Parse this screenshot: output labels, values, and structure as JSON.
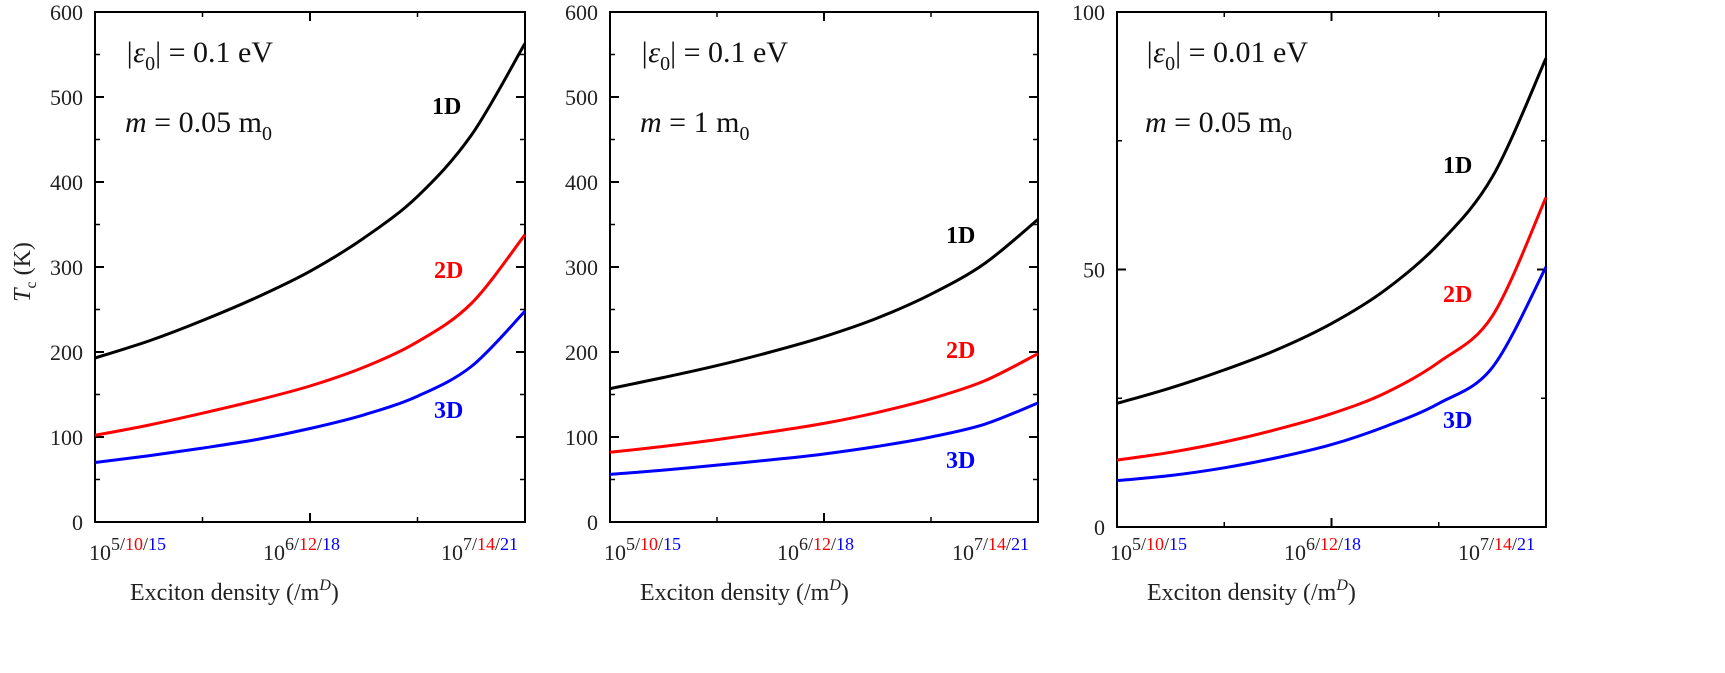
{
  "colors": {
    "1D": "#000000",
    "2D": "#ff0000",
    "3D": "#0000ff",
    "axis": "#000000"
  },
  "shared": {
    "y_axis_title": {
      "main": "T",
      "sub": "c",
      "rest": " (K)"
    },
    "x_axis_title": {
      "main": "Exciton density (/m",
      "sup": "D",
      "close": ")"
    },
    "x_tick_labels": [
      {
        "base": "10",
        "parts": [
          "5",
          "10",
          "15"
        ]
      },
      {
        "base": "10",
        "parts": [
          "6",
          "12",
          "18"
        ]
      },
      {
        "base": "10",
        "parts": [
          "7",
          "14",
          "21"
        ]
      }
    ],
    "separator": "/"
  },
  "chart_data": [
    {
      "type": "line",
      "params": {
        "line1": {
          "lhs": "|ε",
          "sub": "0",
          "rhs": "| = 0.1 eV"
        },
        "line2": {
          "lhs": "m",
          "rhs": " = 0.05 m",
          "sub": "0"
        }
      },
      "xlim": [
        0,
        2
      ],
      "ylim": [
        0,
        600
      ],
      "yticks": [
        "0",
        "100",
        "200",
        "300",
        "400",
        "500",
        "600"
      ],
      "x": [
        0,
        0.25,
        0.5,
        0.75,
        1.0,
        1.25,
        1.5,
        1.75,
        2.0
      ],
      "series": [
        {
          "name": "1D",
          "values": [
            193,
            213,
            237,
            264,
            295,
            334,
            383,
            455,
            563
          ]
        },
        {
          "name": "2D",
          "values": [
            102,
            114,
            128,
            143,
            160,
            182,
            212,
            257,
            338
          ]
        },
        {
          "name": "3D",
          "values": [
            70,
            78,
            87,
            97,
            110,
            126,
            148,
            183,
            248
          ]
        }
      ]
    },
    {
      "type": "line",
      "params": {
        "line1": {
          "lhs": "|ε",
          "sub": "0",
          "rhs": "| = 0.1 eV"
        },
        "line2": {
          "lhs": "m",
          "rhs": " = 1 m",
          "sub": "0"
        }
      },
      "xlim": [
        0,
        2
      ],
      "ylim": [
        0,
        600
      ],
      "yticks": [
        "0",
        "100",
        "200",
        "300",
        "400",
        "500",
        "600"
      ],
      "x": [
        0,
        0.25,
        0.5,
        0.75,
        1.0,
        1.25,
        1.5,
        1.75,
        2.0
      ],
      "series": [
        {
          "name": "1D",
          "values": [
            157,
            170,
            184,
            200,
            218,
            240,
            268,
            304,
            356
          ]
        },
        {
          "name": "2D",
          "values": [
            82,
            89,
            97,
            106,
            116,
            129,
            145,
            166,
            198
          ]
        },
        {
          "name": "3D",
          "values": [
            56,
            61,
            67,
            73,
            80,
            89,
            100,
            115,
            140
          ]
        }
      ]
    },
    {
      "type": "line",
      "params": {
        "line1": {
          "lhs": "|ε",
          "sub": "0",
          "rhs": "| = 0.01 eV"
        },
        "line2": {
          "lhs": "m",
          "rhs": " = 0.05 m",
          "sub": "0"
        }
      },
      "xlim": [
        0,
        2
      ],
      "ylim": [
        0,
        100
      ],
      "yticks": [
        "0",
        "50",
        "100"
      ],
      "x": [
        0,
        0.25,
        0.5,
        0.75,
        1.0,
        1.25,
        1.5,
        1.75,
        2.0
      ],
      "series": [
        {
          "name": "1D",
          "values": [
            24,
            27,
            30.5,
            34.5,
            39.5,
            46,
            55,
            68,
            91
          ]
        },
        {
          "name": "2D",
          "values": [
            13,
            14.5,
            16.5,
            19,
            22,
            26,
            32,
            41,
            64
          ]
        },
        {
          "name": "3D",
          "values": [
            9,
            10,
            11.5,
            13.5,
            16,
            19.5,
            24,
            31,
            50.5
          ]
        }
      ]
    }
  ]
}
